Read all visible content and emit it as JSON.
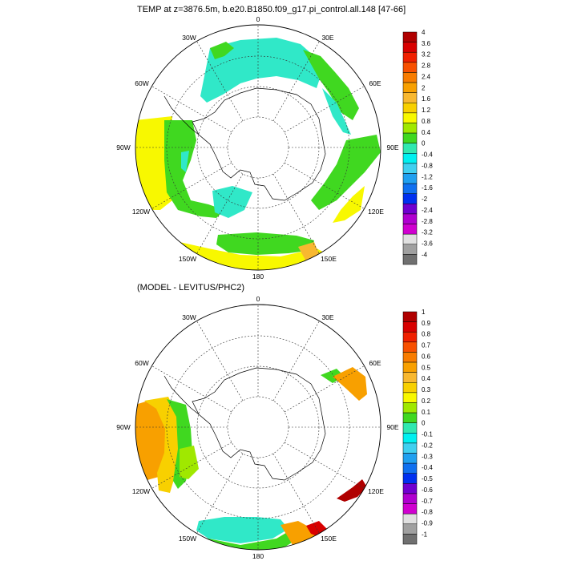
{
  "top_panel": {
    "title": "TEMP at z=3876.5m, b.e20.B1850.f09_g17.pi_control.all.148 [47-66]",
    "lon_labels": {
      "n": "0",
      "ne": "30E",
      "nw": "30W",
      "e_upper": "60E",
      "w_upper": "60W",
      "e": "90E",
      "w": "90W",
      "e_lower": "120E",
      "w_lower": "120W",
      "se": "150E",
      "sw": "150W",
      "s": "180"
    },
    "colorbar": {
      "labels": [
        "4",
        "3.6",
        "3.2",
        "2.8",
        "2.4",
        "2",
        "1.6",
        "1.2",
        "0.8",
        "0.4",
        "0",
        "-0.4",
        "-0.8",
        "-1.2",
        "-1.6",
        "-2",
        "-2.4",
        "-2.8",
        "-3.2",
        "-3.6",
        "-4"
      ],
      "colors": [
        "#b00000",
        "#d80000",
        "#f02000",
        "#f85000",
        "#f87c00",
        "#f8a000",
        "#f8b830",
        "#f8d000",
        "#f8f800",
        "#a0e800",
        "#40d820",
        "#30e8b0",
        "#00f0f0",
        "#40d0f0",
        "#20a0f0",
        "#1070f0",
        "#0030f0",
        "#7000d0",
        "#b000d0",
        "#d000d0",
        "#e0e0e0",
        "#a0a0a0",
        "#707070"
      ]
    }
  },
  "bottom_panel": {
    "title": "(MODEL - LEVITUS/PHC2)",
    "lon_labels": {
      "n": "0",
      "ne": "30E",
      "nw": "30W",
      "e_upper": "60E",
      "w_upper": "60W",
      "e": "90E",
      "w": "90W",
      "e_lower": "120E",
      "w_lower": "120W",
      "se": "150E",
      "sw": "150W",
      "s": "180"
    },
    "colorbar": {
      "labels": [
        "1",
        "0.9",
        "0.8",
        "0.7",
        "0.6",
        "0.5",
        "0.4",
        "0.3",
        "0.2",
        "0.1",
        "0",
        "-0.1",
        "-0.2",
        "-0.3",
        "-0.4",
        "-0.5",
        "-0.6",
        "-0.7",
        "-0.8",
        "-0.9",
        "-1"
      ],
      "colors": [
        "#b00000",
        "#d80000",
        "#f02000",
        "#f85000",
        "#f87c00",
        "#f8a000",
        "#f8b830",
        "#f8d000",
        "#f8f800",
        "#a0e800",
        "#40d820",
        "#30e8b0",
        "#00f0f0",
        "#40d0f0",
        "#20a0f0",
        "#1070f0",
        "#0030f0",
        "#7000d0",
        "#b000d0",
        "#d000d0",
        "#e0e0e0",
        "#a0a0a0",
        "#707070"
      ]
    }
  }
}
